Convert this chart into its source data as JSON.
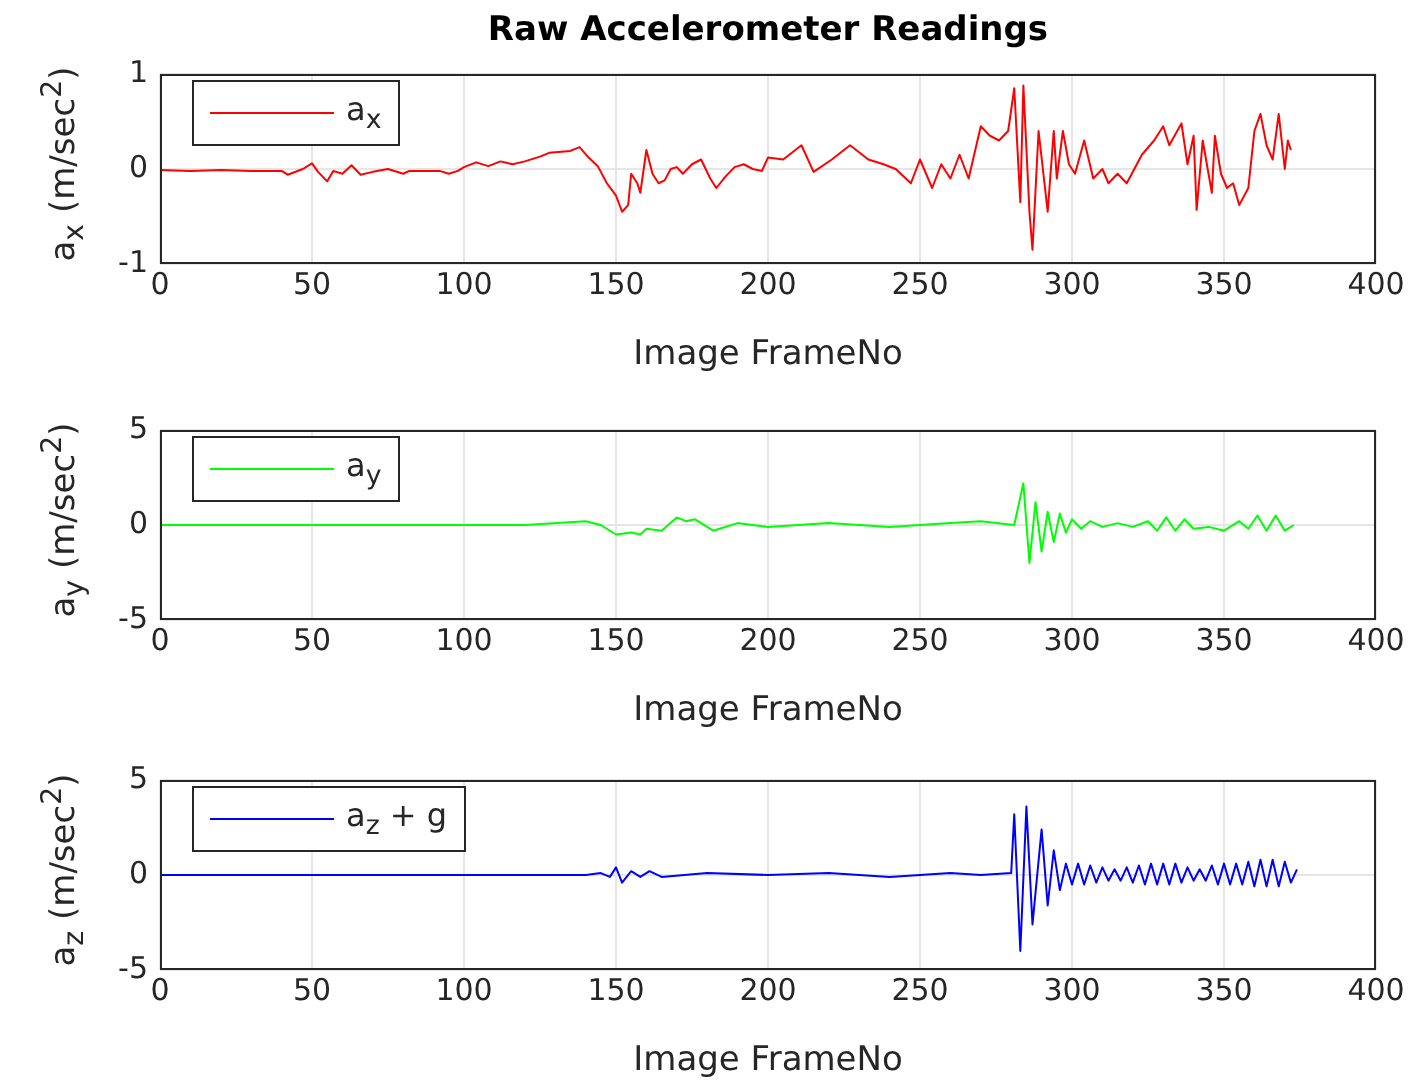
{
  "chart_data": [
    {
      "type": "line",
      "title": "Raw Accelerometer Readings",
      "xlabel": "Image FrameNo",
      "ylabel": "a$_{x}$ (m/sec$^{2}$)",
      "xlim": [
        0,
        400
      ],
      "xticks": [
        0,
        50,
        100,
        150,
        200,
        250,
        300,
        350,
        400
      ],
      "ylim": [
        -1,
        1
      ],
      "yticks": [
        -1,
        0,
        1
      ],
      "grid": true,
      "legend": "top left",
      "series": [
        {
          "name": "a$_{x}$",
          "color": "#ff0000",
          "x": [
            0,
            10,
            20,
            30,
            40,
            42,
            47,
            50,
            52,
            55,
            57,
            60,
            63,
            66,
            70,
            75,
            80,
            82,
            88,
            92,
            95,
            98,
            100,
            104,
            108,
            112,
            116,
            120,
            125,
            128,
            135,
            138,
            141,
            144,
            147,
            150,
            152,
            154,
            155,
            157,
            158,
            160,
            162,
            164,
            166,
            168,
            170,
            172,
            175,
            178,
            181,
            183,
            186,
            189,
            192,
            195,
            198,
            200,
            205,
            211,
            215,
            221,
            227,
            233,
            238,
            242,
            247,
            250,
            254,
            257,
            260,
            263,
            266,
            270,
            273,
            276,
            279,
            281,
            283,
            284,
            286,
            287,
            289,
            292,
            294,
            295,
            297,
            299,
            301,
            304,
            307,
            310,
            312,
            315,
            318,
            323,
            327,
            330,
            332,
            336,
            338,
            340,
            341,
            343,
            346,
            347,
            349,
            351,
            353,
            355,
            358,
            360,
            362,
            364,
            366,
            368,
            370,
            371,
            372
          ],
          "values": [
            -0.01,
            -0.02,
            -0.01,
            -0.02,
            -0.02,
            -0.06,
            0,
            0.06,
            -0.03,
            -0.13,
            -0.02,
            -0.05,
            0.04,
            -0.06,
            -0.03,
            0,
            -0.05,
            -0.02,
            -0.02,
            -0.02,
            -0.05,
            -0.02,
            0.02,
            0.07,
            0.03,
            0.08,
            0.05,
            0.08,
            0.13,
            0.17,
            0.19,
            0.23,
            0.12,
            0.03,
            -0.15,
            -0.28,
            -0.45,
            -0.38,
            -0.05,
            -0.15,
            -0.25,
            0.2,
            -0.05,
            -0.15,
            -0.12,
            0,
            0.02,
            -0.05,
            0.05,
            0.1,
            -0.1,
            -0.2,
            -0.08,
            0.02,
            0.05,
            0,
            -0.02,
            0.12,
            0.1,
            0.25,
            -0.03,
            0.1,
            0.25,
            0.1,
            0.05,
            0,
            -0.15,
            0.1,
            -0.2,
            0.05,
            -0.1,
            0.15,
            -0.1,
            0.45,
            0.35,
            0.3,
            0.4,
            0.85,
            -0.35,
            0.88,
            -0.45,
            -0.85,
            0.4,
            -0.45,
            0.4,
            -0.1,
            0.4,
            0.05,
            -0.05,
            0.3,
            -0.1,
            0,
            -0.15,
            -0.05,
            -0.15,
            0.15,
            0.3,
            0.45,
            0.25,
            0.48,
            0.05,
            0.35,
            -0.43,
            0.3,
            -0.25,
            0.35,
            -0.05,
            -0.2,
            -0.15,
            -0.38,
            -0.2,
            0.4,
            0.58,
            0.25,
            0.1,
            0.58,
            0,
            0.3,
            0.2
          ]
        }
      ]
    },
    {
      "type": "line",
      "xlabel": "Image FrameNo",
      "ylabel": "a$_{y}$ (m/sec$^{2}$)",
      "xlim": [
        0,
        400
      ],
      "xticks": [
        0,
        50,
        100,
        150,
        200,
        250,
        300,
        350,
        400
      ],
      "ylim": [
        -5,
        5
      ],
      "yticks": [
        -5,
        0,
        5
      ],
      "grid": true,
      "legend": "top left",
      "series": [
        {
          "name": "a$_{y}$",
          "color": "#00ff00",
          "x": [
            0,
            30,
            60,
            90,
            120,
            140,
            145,
            150,
            155,
            158,
            160,
            165,
            170,
            173,
            176,
            182,
            190,
            200,
            220,
            240,
            260,
            270,
            281,
            284,
            286,
            288,
            290,
            292,
            294,
            296,
            298,
            300,
            303,
            306,
            310,
            315,
            320,
            325,
            328,
            331,
            334,
            337,
            340,
            345,
            350,
            355,
            358,
            361,
            364,
            367,
            370,
            373
          ],
          "values": [
            0,
            0,
            0,
            0,
            0,
            0.2,
            0,
            -0.5,
            -0.4,
            -0.5,
            -0.2,
            -0.3,
            0.4,
            0.2,
            0.3,
            -0.3,
            0.1,
            -0.1,
            0.1,
            -0.1,
            0.1,
            0.2,
            0,
            2.2,
            -2,
            1.2,
            -1.4,
            0.7,
            -0.9,
            0.6,
            -0.4,
            0.3,
            -0.2,
            0.2,
            -0.1,
            0.1,
            -0.1,
            0.2,
            -0.3,
            0.4,
            -0.3,
            0.3,
            -0.2,
            -0.1,
            -0.3,
            0.2,
            -0.2,
            0.5,
            -0.3,
            0.5,
            -0.3,
            0
          ]
        }
      ]
    },
    {
      "type": "line",
      "xlabel": "Image FrameNo",
      "ylabel": "a$_{z}$ (m/sec$^{2}$)",
      "xlim": [
        0,
        400
      ],
      "xticks": [
        0,
        50,
        100,
        150,
        200,
        250,
        300,
        350,
        400
      ],
      "ylim": [
        -5,
        5
      ],
      "yticks": [
        -5,
        0,
        5
      ],
      "grid": true,
      "legend": "top left",
      "series": [
        {
          "name": "a$_{z}$ + g",
          "color": "#0000ff",
          "x": [
            0,
            50,
            100,
            140,
            145,
            148,
            150,
            152,
            155,
            158,
            161,
            165,
            180,
            200,
            220,
            240,
            260,
            270,
            280,
            281,
            283,
            285,
            287,
            290,
            292,
            294,
            296,
            298,
            300,
            302,
            304,
            306,
            308,
            310,
            312,
            314,
            316,
            318,
            320,
            322,
            324,
            326,
            328,
            330,
            332,
            334,
            336,
            338,
            340,
            342,
            344,
            346,
            348,
            350,
            352,
            354,
            356,
            358,
            360,
            362,
            364,
            366,
            368,
            370,
            372,
            374
          ],
          "values": [
            0,
            0,
            0,
            0,
            0.1,
            -0.1,
            0.4,
            -0.4,
            0.2,
            -0.1,
            0.2,
            -0.1,
            0.1,
            0,
            0.1,
            -0.1,
            0.1,
            0,
            0.1,
            3.2,
            -4,
            3.6,
            -2.6,
            2.4,
            -1.6,
            1.3,
            -0.8,
            0.6,
            -0.5,
            0.6,
            -0.5,
            0.5,
            -0.4,
            0.4,
            -0.3,
            0.3,
            -0.3,
            0.4,
            -0.4,
            0.5,
            -0.5,
            0.6,
            -0.5,
            0.6,
            -0.5,
            0.6,
            -0.4,
            0.4,
            -0.3,
            0.3,
            -0.3,
            0.5,
            -0.5,
            0.6,
            -0.5,
            0.6,
            -0.5,
            0.7,
            -0.6,
            0.8,
            -0.6,
            0.8,
            -0.6,
            0.7,
            -0.4,
            0.3
          ]
        }
      ]
    }
  ]
}
